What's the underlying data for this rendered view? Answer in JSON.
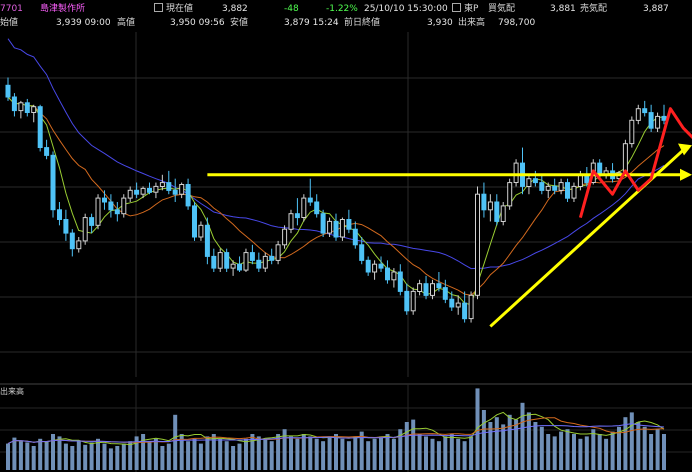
{
  "header": {
    "code": "7701",
    "name": "島津製作所",
    "current_label": "現在値",
    "current_value": "3,882",
    "change": "-48",
    "change_pct": "-1.22%",
    "datetime": "25/10/10  15:30:00",
    "market": "東P",
    "bid_label": "買気配",
    "bid_value": "3,881",
    "ask_label": "売気配",
    "ask_value": "3,887",
    "open_label": "始値",
    "open_value": "3,939  09:00",
    "high_label": "高値",
    "high_value": "3,950  09:56",
    "low_label": "安値",
    "low_value": "3,879  15:24",
    "prev_close_label": "前日終値",
    "prev_close_value": "3,930",
    "volume_label": "出来高",
    "volume_value": "798,700"
  },
  "volume_panel_label": "出来高",
  "chart_data": {
    "type": "candlestick",
    "up_color": "#d0d0d0",
    "down_color": "#4fc3f7",
    "ma_short_color": "#9acd32",
    "ma_mid_color": "#d2691e",
    "ma_long_color": "#4848e8",
    "trendline_color": "#ffff00",
    "arrow_color": "#ff2020",
    "candles": [
      [
        4040,
        4060,
        4000,
        4010
      ],
      [
        4010,
        4020,
        3960,
        3975
      ],
      [
        3975,
        4000,
        3955,
        3995
      ],
      [
        3995,
        4005,
        3960,
        3970
      ],
      [
        3970,
        3990,
        3945,
        3985
      ],
      [
        3985,
        3990,
        3870,
        3880
      ],
      [
        3880,
        3900,
        3850,
        3860
      ],
      [
        3860,
        3870,
        3700,
        3720
      ],
      [
        3720,
        3740,
        3680,
        3695
      ],
      [
        3695,
        3720,
        3640,
        3660
      ],
      [
        3660,
        3670,
        3600,
        3620
      ],
      [
        3620,
        3650,
        3610,
        3640
      ],
      [
        3640,
        3710,
        3630,
        3700
      ],
      [
        3700,
        3710,
        3660,
        3680
      ],
      [
        3680,
        3760,
        3670,
        3750
      ],
      [
        3750,
        3770,
        3720,
        3740
      ],
      [
        3740,
        3760,
        3700,
        3720
      ],
      [
        3720,
        3740,
        3690,
        3710
      ],
      [
        3710,
        3760,
        3700,
        3750
      ],
      [
        3750,
        3780,
        3740,
        3770
      ],
      [
        3770,
        3790,
        3750,
        3760
      ],
      [
        3760,
        3780,
        3750,
        3775
      ],
      [
        3775,
        3790,
        3760,
        3765
      ],
      [
        3765,
        3790,
        3750,
        3780
      ],
      [
        3780,
        3810,
        3770,
        3790
      ],
      [
        3790,
        3820,
        3760,
        3770
      ],
      [
        3770,
        3800,
        3740,
        3760
      ],
      [
        3760,
        3790,
        3750,
        3785
      ],
      [
        3785,
        3800,
        3720,
        3730
      ],
      [
        3730,
        3740,
        3640,
        3650
      ],
      [
        3650,
        3690,
        3640,
        3680
      ],
      [
        3680,
        3700,
        3580,
        3600
      ],
      [
        3600,
        3620,
        3560,
        3570
      ],
      [
        3570,
        3620,
        3560,
        3610
      ],
      [
        3610,
        3620,
        3560,
        3570
      ],
      [
        3570,
        3590,
        3550,
        3580
      ],
      [
        3580,
        3600,
        3560,
        3565
      ],
      [
        3565,
        3620,
        3560,
        3610
      ],
      [
        3610,
        3630,
        3580,
        3590
      ],
      [
        3590,
        3610,
        3560,
        3570
      ],
      [
        3570,
        3610,
        3560,
        3600
      ],
      [
        3600,
        3620,
        3580,
        3590
      ],
      [
        3590,
        3640,
        3580,
        3630
      ],
      [
        3630,
        3680,
        3620,
        3670
      ],
      [
        3670,
        3720,
        3660,
        3710
      ],
      [
        3710,
        3750,
        3680,
        3700
      ],
      [
        3700,
        3760,
        3690,
        3750
      ],
      [
        3750,
        3800,
        3730,
        3740
      ],
      [
        3740,
        3760,
        3700,
        3710
      ],
      [
        3710,
        3720,
        3650,
        3660
      ],
      [
        3660,
        3700,
        3650,
        3690
      ],
      [
        3690,
        3710,
        3640,
        3650
      ],
      [
        3650,
        3700,
        3640,
        3695
      ],
      [
        3695,
        3720,
        3660,
        3670
      ],
      [
        3670,
        3690,
        3620,
        3630
      ],
      [
        3630,
        3650,
        3580,
        3590
      ],
      [
        3590,
        3600,
        3550,
        3560
      ],
      [
        3560,
        3590,
        3540,
        3580
      ],
      [
        3580,
        3600,
        3560,
        3570
      ],
      [
        3570,
        3590,
        3530,
        3540
      ],
      [
        3540,
        3570,
        3520,
        3560
      ],
      [
        3560,
        3580,
        3500,
        3510
      ],
      [
        3510,
        3530,
        3450,
        3460
      ],
      [
        3460,
        3520,
        3450,
        3510
      ],
      [
        3510,
        3540,
        3500,
        3530
      ],
      [
        3530,
        3550,
        3490,
        3500
      ],
      [
        3500,
        3540,
        3490,
        3530
      ],
      [
        3530,
        3560,
        3510,
        3520
      ],
      [
        3520,
        3540,
        3480,
        3490
      ],
      [
        3490,
        3510,
        3460,
        3470
      ],
      [
        3470,
        3500,
        3450,
        3480
      ],
      [
        3480,
        3510,
        3430,
        3440
      ],
      [
        3440,
        3510,
        3430,
        3500
      ],
      [
        3500,
        3780,
        3490,
        3760
      ],
      [
        3760,
        3790,
        3700,
        3720
      ],
      [
        3720,
        3760,
        3690,
        3740
      ],
      [
        3740,
        3760,
        3680,
        3690
      ],
      [
        3690,
        3740,
        3680,
        3730
      ],
      [
        3730,
        3800,
        3720,
        3790
      ],
      [
        3790,
        3850,
        3780,
        3840
      ],
      [
        3840,
        3880,
        3760,
        3780
      ],
      [
        3780,
        3810,
        3760,
        3800
      ],
      [
        3800,
        3820,
        3780,
        3790
      ],
      [
        3790,
        3810,
        3760,
        3770
      ],
      [
        3770,
        3790,
        3750,
        3780
      ],
      [
        3780,
        3800,
        3760,
        3770
      ],
      [
        3770,
        3800,
        3760,
        3790
      ],
      [
        3790,
        3800,
        3740,
        3750
      ],
      [
        3750,
        3790,
        3740,
        3780
      ],
      [
        3780,
        3820,
        3770,
        3810
      ],
      [
        3810,
        3830,
        3780,
        3790
      ],
      [
        3790,
        3850,
        3785,
        3840
      ],
      [
        3840,
        3850,
        3800,
        3810
      ],
      [
        3810,
        3830,
        3800,
        3820
      ],
      [
        3820,
        3840,
        3790,
        3800
      ],
      [
        3800,
        3820,
        3790,
        3815
      ],
      [
        3815,
        3900,
        3810,
        3890
      ],
      [
        3890,
        3960,
        3880,
        3950
      ],
      [
        3950,
        3990,
        3940,
        3980
      ],
      [
        3980,
        4000,
        3960,
        3970
      ],
      [
        3970,
        3990,
        3920,
        3930
      ],
      [
        3930,
        3970,
        3920,
        3960
      ],
      [
        3960,
        3990,
        3940,
        3950
      ]
    ],
    "volume": [
      22,
      27,
      24,
      23,
      20,
      26,
      24,
      30,
      28,
      22,
      20,
      24,
      21,
      23,
      26,
      22,
      18,
      20,
      22,
      24,
      28,
      30,
      24,
      26,
      20,
      22,
      46,
      30,
      24,
      26,
      22,
      28,
      30,
      26,
      24,
      20,
      22,
      26,
      30,
      28,
      26,
      24,
      30,
      34,
      28,
      26,
      30,
      28,
      26,
      24,
      28,
      30,
      26,
      24,
      28,
      32,
      24,
      26,
      28,
      30,
      26,
      34,
      40,
      42,
      30,
      28,
      26,
      24,
      28,
      30,
      26,
      24,
      28,
      68,
      50,
      40,
      44,
      38,
      46,
      42,
      56,
      48,
      40,
      36,
      30,
      28,
      32,
      34,
      30,
      26,
      28,
      34,
      30,
      26,
      32,
      36,
      44,
      48,
      40,
      36,
      30,
      34,
      30
    ]
  }
}
